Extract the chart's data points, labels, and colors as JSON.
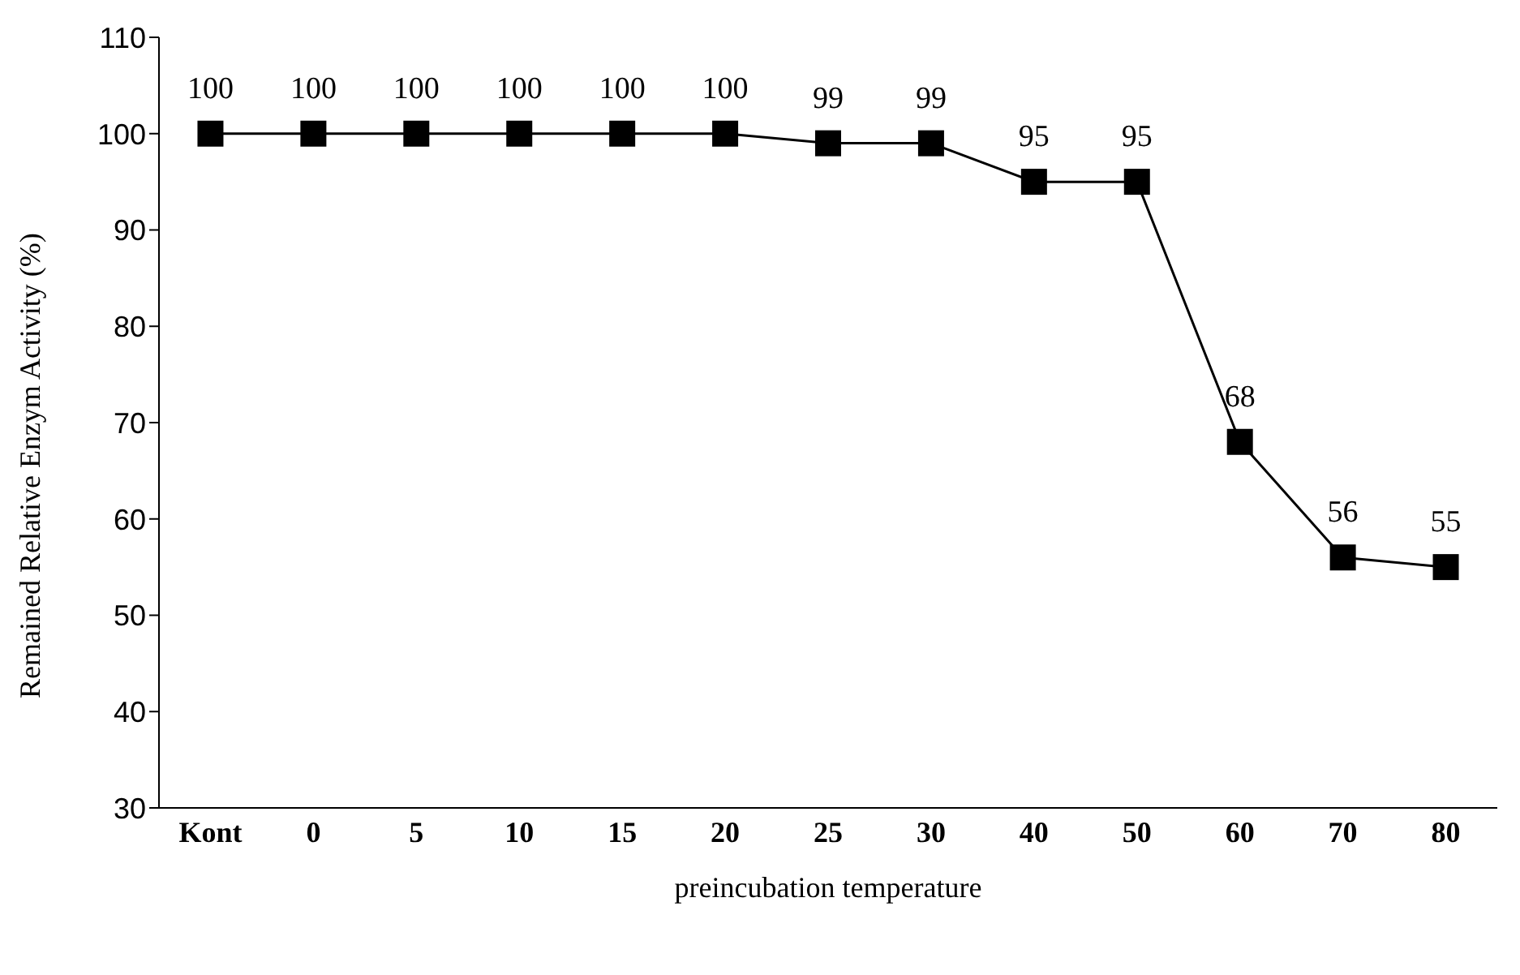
{
  "chart_data": {
    "type": "line",
    "xlabel": "preincubation temperature",
    "ylabel": "Remained Relative Enzym Activity (%)",
    "categories": [
      "Kont",
      "0",
      "5",
      "10",
      "15",
      "20",
      "25",
      "30",
      "40",
      "50",
      "60",
      "70",
      "80"
    ],
    "series": [
      {
        "color": "#000000",
        "values": [
          100,
          100,
          100,
          100,
          100,
          100,
          99,
          99,
          95,
          95,
          68,
          56,
          55
        ]
      }
    ],
    "ylim": [
      30,
      110
    ],
    "yticks": [
      30,
      40,
      50,
      60,
      70,
      80,
      90,
      100,
      110
    ],
    "grid": false,
    "legend": false,
    "marker": "square",
    "line_style": "solid",
    "data_labels": true
  }
}
